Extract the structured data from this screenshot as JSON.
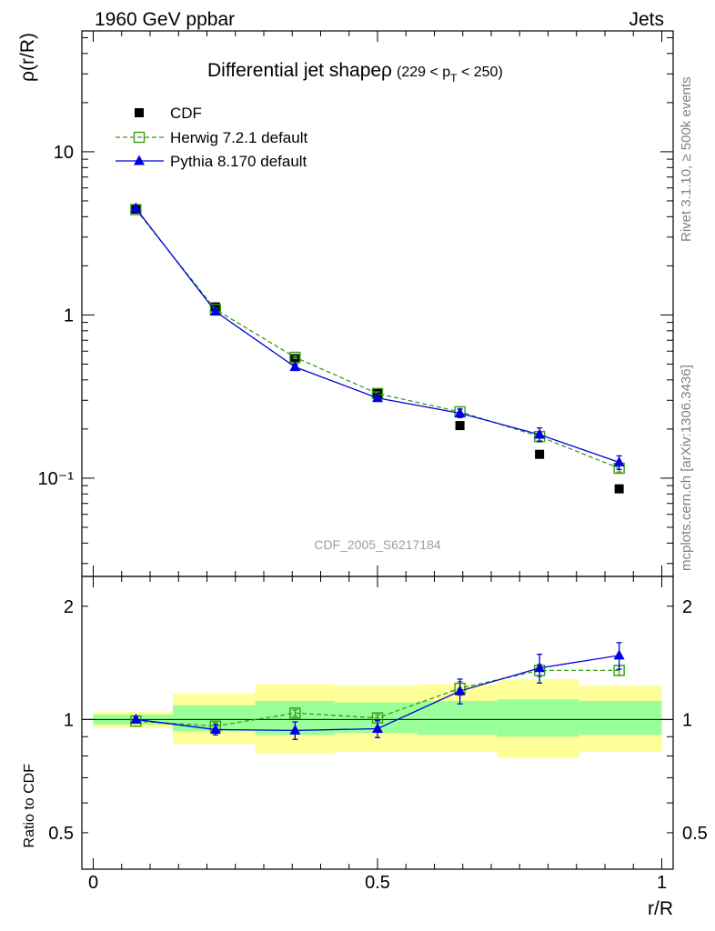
{
  "header": {
    "left": "1960 GeV ppbar",
    "right": "Jets"
  },
  "side_labels": {
    "rivet": "Rivet 3.1.10, ≥ 500k events",
    "mcplots": "mcplots.cern.ch [arXiv:1306.3436]"
  },
  "watermark": "CDF_2005_S6217184",
  "colors": {
    "data": "#000000",
    "herwig": "#3a9a1a",
    "pythia": "#0000dd",
    "band_outer": "#ffff99",
    "band_inner": "#99ff99"
  },
  "chart_data": [
    {
      "type": "line",
      "panel": "main",
      "title": "Differential jet shapeρ",
      "title_suffix": "(229 < p",
      "title_subscript": "T",
      "title_end": " < 250)",
      "ylabel": "ρ(r/R)",
      "yscale": "log",
      "ylim": [
        0.025,
        55
      ],
      "xlim": [
        -0.02,
        1.02
      ],
      "y_tick_labels": [
        "10⁻¹",
        "1",
        "10"
      ],
      "legend_position": "top-left",
      "x": [
        0.075,
        0.215,
        0.355,
        0.5,
        0.645,
        0.785,
        0.925
      ],
      "series": [
        {
          "name": "CDF",
          "marker": "filled-square",
          "values": [
            4.45,
            1.12,
            0.54,
            0.33,
            0.21,
            0.14,
            0.086
          ]
        },
        {
          "name": "Herwig 7.2.1 default",
          "marker": "open-square",
          "line": "dashed",
          "values": [
            4.42,
            1.08,
            0.55,
            0.33,
            0.255,
            0.18,
            0.115
          ],
          "errors": [
            0.05,
            0.02,
            0.01,
            0.008,
            0.01,
            0.01,
            0.006
          ]
        },
        {
          "name": "Pythia 8.170 default",
          "marker": "filled-triangle",
          "line": "solid",
          "values": [
            4.5,
            1.05,
            0.48,
            0.31,
            0.25,
            0.185,
            0.125
          ],
          "errors": [
            0.05,
            0.03,
            0.02,
            0.01,
            0.015,
            0.018,
            0.012
          ]
        }
      ]
    },
    {
      "type": "line",
      "panel": "ratio",
      "ylabel": "Ratio to CDF",
      "xlabel": "r/R",
      "yscale": "log",
      "ylim": [
        0.4,
        2.4
      ],
      "xlim": [
        -0.02,
        1.02
      ],
      "y_tick_labels": [
        "0.5",
        "1",
        "2"
      ],
      "x_tick_labels": [
        "0",
        "0.5",
        "1"
      ],
      "reference_line": 1.0,
      "band_edges": [
        0.0,
        0.14,
        0.285,
        0.425,
        0.57,
        0.71,
        0.855,
        1.0
      ],
      "band_outer": {
        "lo": [
          0.95,
          0.86,
          0.81,
          0.82,
          0.82,
          0.79,
          0.82
        ],
        "hi": [
          1.05,
          1.17,
          1.24,
          1.23,
          1.24,
          1.28,
          1.23
        ]
      },
      "band_inner": {
        "lo": [
          0.97,
          0.93,
          0.91,
          0.92,
          0.91,
          0.9,
          0.91
        ],
        "hi": [
          1.03,
          1.09,
          1.12,
          1.11,
          1.12,
          1.13,
          1.12
        ]
      },
      "x": [
        0.075,
        0.215,
        0.355,
        0.5,
        0.645,
        0.785,
        0.925
      ],
      "series": [
        {
          "name": "Herwig 7.2.1 default",
          "marker": "open-square",
          "line": "dashed",
          "values": [
            0.99,
            0.96,
            1.04,
            1.01,
            1.21,
            1.35,
            1.35
          ],
          "errors": [
            0.01,
            0.02,
            0.02,
            0.02,
            0.05,
            0.05,
            0.04
          ]
        },
        {
          "name": "Pythia 8.170 default",
          "marker": "filled-triangle",
          "line": "solid",
          "values": [
            1.0,
            0.94,
            0.935,
            0.945,
            1.19,
            1.37,
            1.48
          ],
          "errors": [
            0.02,
            0.03,
            0.05,
            0.05,
            0.09,
            0.12,
            0.12
          ]
        }
      ]
    }
  ]
}
